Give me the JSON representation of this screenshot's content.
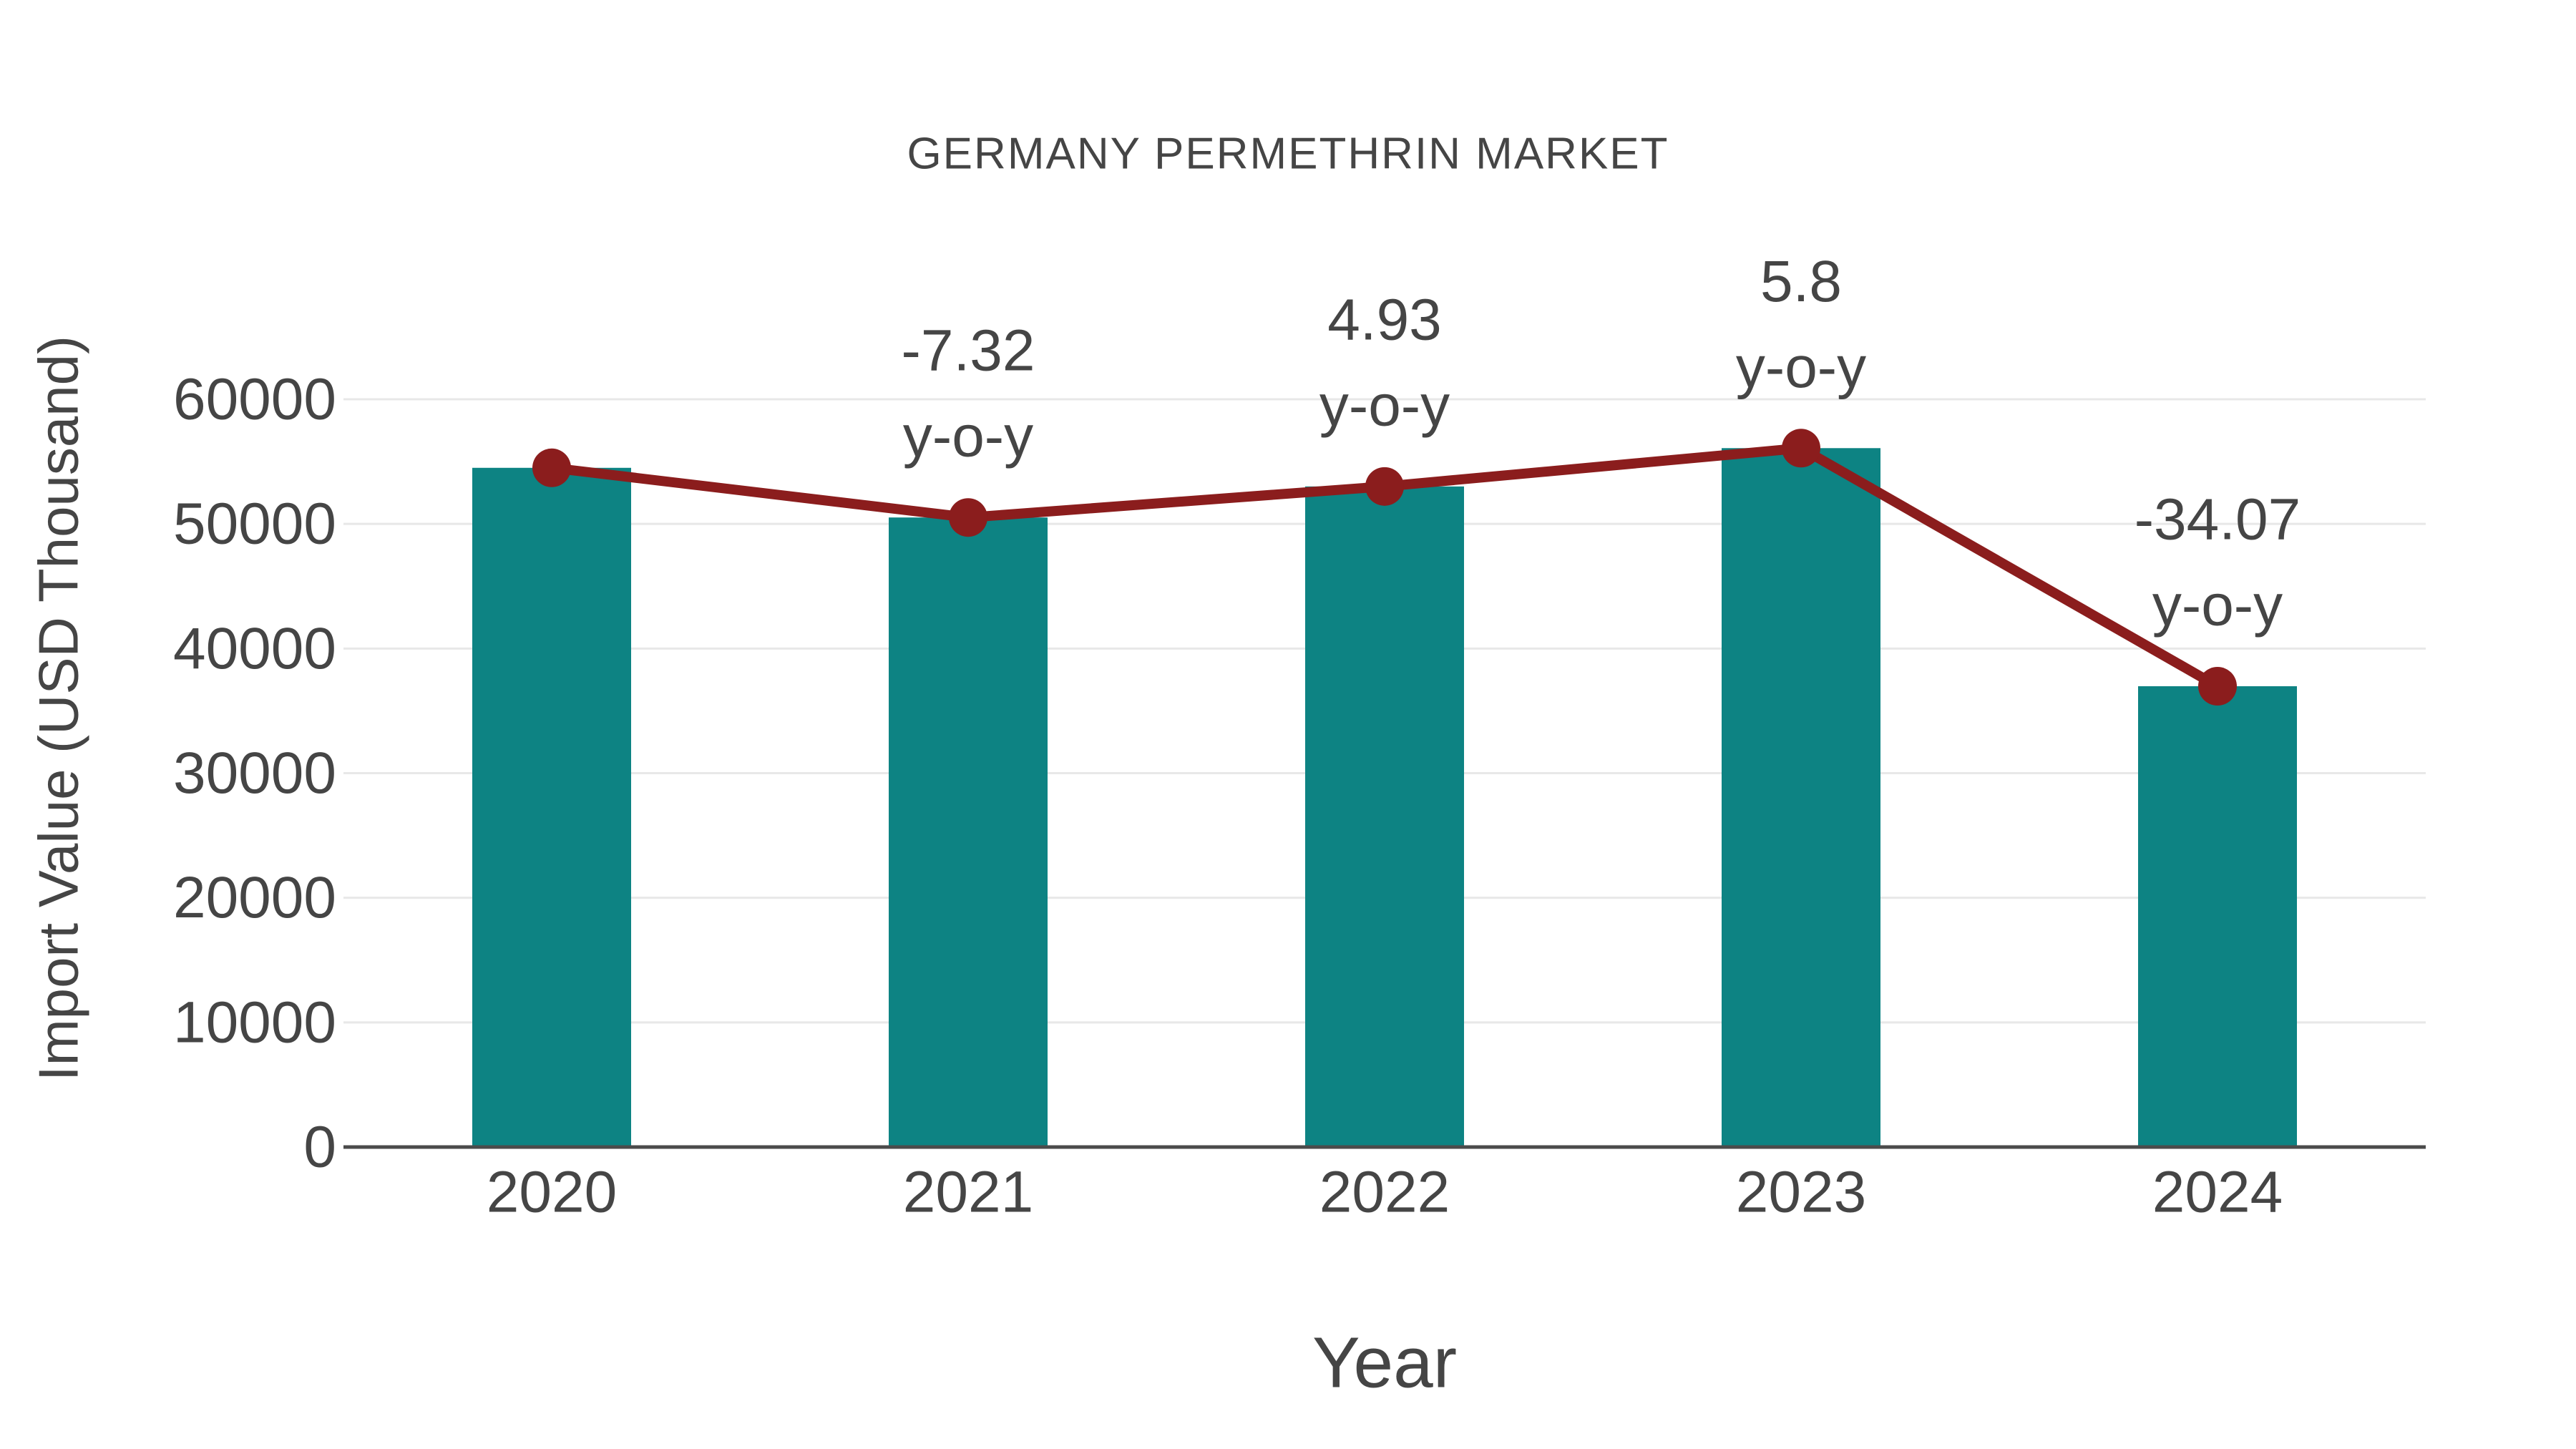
{
  "chart": {
    "title": "GERMANY PERMETHRIN MARKET",
    "x_axis_label": "Year",
    "y_axis_label": "Import Value (USD Thousand)"
  },
  "chart_data": {
    "type": "bar",
    "categories": [
      "2020",
      "2021",
      "2022",
      "2023",
      "2024"
    ],
    "series": [
      {
        "name": "Import Value (USD Thousand)",
        "type": "bar",
        "color": "#0d8383",
        "values": [
          54500,
          50515,
          53005,
          56080,
          36975
        ]
      },
      {
        "name": "y-o-y trend line",
        "type": "line",
        "color": "#8b1d1d",
        "values": [
          54500,
          50515,
          53005,
          56080,
          36975
        ]
      }
    ],
    "annotations": [
      {
        "category": "2021",
        "value_label": "-7.32",
        "suffix_label": "y-o-y"
      },
      {
        "category": "2022",
        "value_label": "4.93",
        "suffix_label": "y-o-y"
      },
      {
        "category": "2023",
        "value_label": "5.8",
        "suffix_label": "y-o-y"
      },
      {
        "category": "2024",
        "value_label": "-34.07",
        "suffix_label": "y-o-y"
      }
    ],
    "yoy_percent": {
      "2021": -7.32,
      "2022": 4.93,
      "2023": 5.8,
      "2024": -34.07
    },
    "y_ticks": [
      "0",
      "10000",
      "20000",
      "30000",
      "40000",
      "50000",
      "60000"
    ],
    "title": "GERMANY PERMETHRIN MARKET",
    "xlabel": "Year",
    "ylabel": "Import Value (USD Thousand)",
    "ylim": [
      0,
      60000
    ],
    "grid": "horizontal",
    "legend": "none",
    "colors": {
      "bar": "#0d8383",
      "line": "#8b1d1d",
      "text": "#454545",
      "gridline": "#e8e8e8",
      "axis_line": "#4b4b4b",
      "background": "#ffffff"
    }
  }
}
